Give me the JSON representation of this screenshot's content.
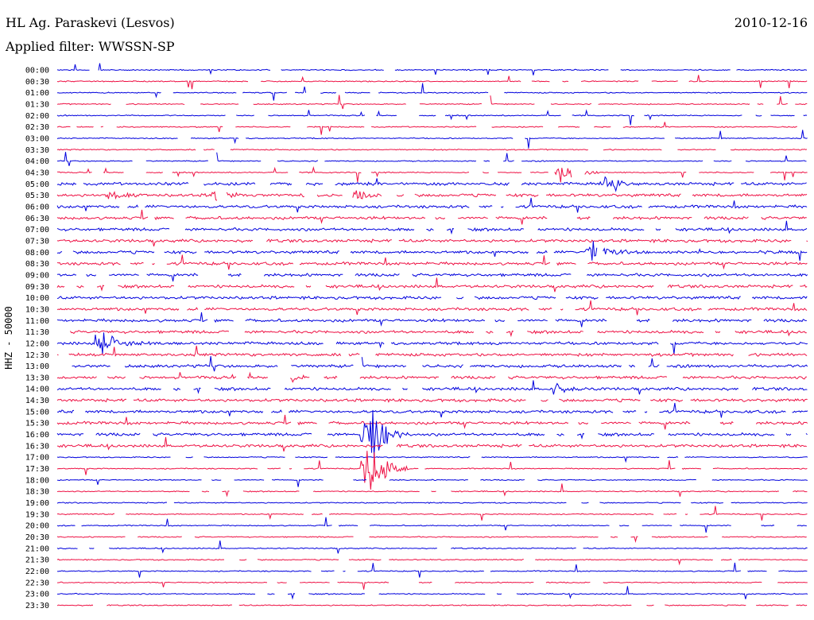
{
  "header": {
    "station": "HL Ag. Paraskevi (Lesvos)",
    "date": "2010-12-16",
    "filter": "Applied filter: WWSSN-SP"
  },
  "chart_data": {
    "type": "line",
    "title": "HL Ag. Paraskevi (Lesvos)",
    "ylabel": "HHZ - 50000",
    "y_ticks": [
      "00:00",
      "00:30",
      "01:00",
      "01:30",
      "02:00",
      "02:30",
      "03:00",
      "03:30",
      "04:00",
      "04:30",
      "05:00",
      "05:30",
      "06:00",
      "06:30",
      "07:00",
      "07:30",
      "08:00",
      "08:30",
      "09:00",
      "09:30",
      "10:00",
      "10:30",
      "11:00",
      "11:30",
      "12:00",
      "12:30",
      "13:00",
      "13:30",
      "14:00",
      "14:30",
      "15:00",
      "15:30",
      "16:00",
      "16:30",
      "17:00",
      "17:30",
      "18:00",
      "18:30",
      "19:00",
      "19:30",
      "20:00",
      "20:30",
      "21:00",
      "21:30",
      "22:00",
      "22:30",
      "23:00",
      "23:30"
    ],
    "colors": [
      "#0000dd",
      "#ee1144"
    ],
    "bursts": [
      {
        "trace": "04:30",
        "t": 0.67,
        "amp": 14
      },
      {
        "trace": "05:00",
        "t": 0.73,
        "amp": 9
      },
      {
        "trace": "05:30",
        "t": 0.39,
        "amp": 10
      },
      {
        "trace": "05:30",
        "t": 0.21,
        "amp": 10
      },
      {
        "trace": "05:30",
        "t": 0.07,
        "amp": 8
      },
      {
        "trace": "08:00",
        "t": 0.71,
        "amp": 22
      },
      {
        "trace": "12:00",
        "t": 0.06,
        "amp": 16
      },
      {
        "trace": "13:30",
        "t": 0.29,
        "amp": 10
      },
      {
        "trace": "14:00",
        "t": 0.66,
        "amp": 9
      },
      {
        "trace": "16:00",
        "t": 0.41,
        "amp": 55
      },
      {
        "trace": "17:30",
        "t": 0.41,
        "amp": 50
      }
    ]
  }
}
